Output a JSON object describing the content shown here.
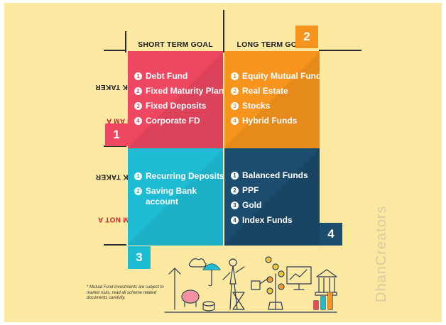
{
  "columns": {
    "short_term": "SHORT TERM GOAL",
    "long_term": "LONG TERM GOAL"
  },
  "rows": {
    "risk_taker": {
      "emphasis": "I AM A",
      "rest": " RISK TAKER"
    },
    "not_risk_taker": {
      "emphasis": "I AM NOT A",
      "rest": " RISK TAKER"
    }
  },
  "quadrants": {
    "q1": {
      "badge": "1",
      "color": "#ee4762",
      "items": [
        {
          "n": "1",
          "label": "Debt Fund"
        },
        {
          "n": "2",
          "label": "Fixed Maturity Plans"
        },
        {
          "n": "3",
          "label": "Fixed Deposits"
        },
        {
          "n": "4",
          "label": "Corporate FD"
        }
      ]
    },
    "q2": {
      "badge": "2",
      "color": "#f7941e",
      "items": [
        {
          "n": "1",
          "label": "Equity Mutual Funds"
        },
        {
          "n": "2",
          "label": "Real Estate"
        },
        {
          "n": "3",
          "label": "Stocks"
        },
        {
          "n": "4",
          "label": "Hybrid Funds"
        }
      ]
    },
    "q3": {
      "badge": "3",
      "color": "#1ebcd3",
      "items": [
        {
          "n": "1",
          "label": "Recurring Deposits"
        },
        {
          "n": "2",
          "label": "Saving Bank account"
        }
      ]
    },
    "q4": {
      "badge": "4",
      "color": "#1c4d6e",
      "items": [
        {
          "n": "1",
          "label": "Balanced Funds"
        },
        {
          "n": "2",
          "label": "PPF"
        },
        {
          "n": "3",
          "label": "Gold"
        },
        {
          "n": "4",
          "label": "Index Funds"
        }
      ]
    }
  },
  "footnote": "* Mutual Fund investments are subject to market risks, read all scheme related documents carefully.",
  "watermark": "DhanCreators"
}
